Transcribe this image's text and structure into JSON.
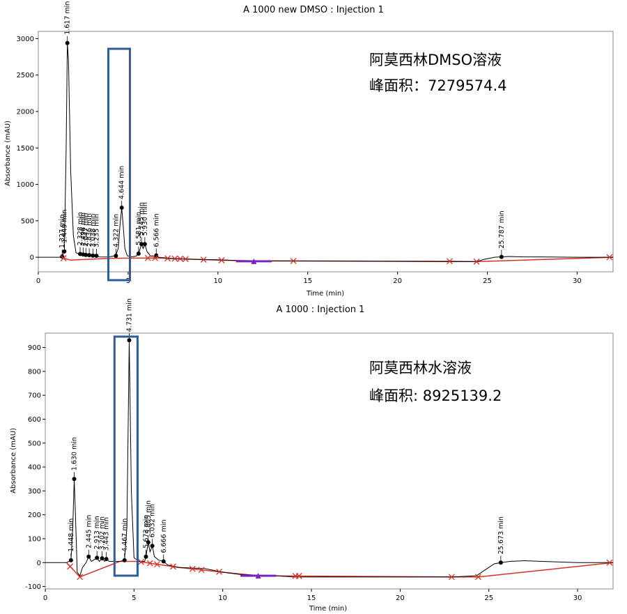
{
  "colors": {
    "trace": "#000000",
    "baseline": "#d93025",
    "marker": "#d93025",
    "purple": "#7a22c8",
    "highlight_box": "#2e5c96",
    "frame": "#888888"
  },
  "chart_data": [
    {
      "type": "line",
      "title": "A 1000 new DMSO : Injection 1",
      "xlabel": "Time (min)",
      "ylabel": "Absorbance (mAU)",
      "xlim": [
        0,
        32
      ],
      "ylim": [
        -200,
        3100
      ],
      "xticks": [
        0,
        5,
        10,
        15,
        20,
        25,
        30
      ],
      "yticks": [
        0,
        500,
        1000,
        1500,
        2000,
        2500,
        3000
      ],
      "annotation": [
        "阿莫西林DMSO溶液",
        "峰面积：7279574.4"
      ],
      "highlight_x_range": [
        3.9,
        5.1
      ],
      "peaks": [
        {
          "time": 1.327,
          "height": 10,
          "label": "1.327 min"
        },
        {
          "time": 1.449,
          "height": 80,
          "label": "1.449 min"
        },
        {
          "time": 1.617,
          "height": 2940,
          "label": "1.617 min"
        },
        {
          "time": 2.328,
          "height": 45,
          "label": "2.328 min"
        },
        {
          "time": 2.496,
          "height": 38,
          "label": "2.496 min"
        },
        {
          "time": 2.647,
          "height": 32,
          "label": "2.647 min"
        },
        {
          "time": 2.836,
          "height": 28,
          "label": "2.836 min"
        },
        {
          "time": 3.038,
          "height": 22,
          "label": "3.038 min"
        },
        {
          "time": 3.235,
          "height": 20,
          "label": "3.235 min"
        },
        {
          "time": 4.322,
          "height": 20,
          "label": "4.322 min"
        },
        {
          "time": 4.644,
          "height": 680,
          "label": "4.644 min"
        },
        {
          "time": 5.581,
          "height": 50,
          "label": "5.581 min"
        },
        {
          "time": 5.745,
          "height": 180,
          "label": "5.745 min"
        },
        {
          "time": 5.93,
          "height": 180,
          "label": "5.930 min"
        },
        {
          "time": 6.566,
          "height": 25,
          "label": "6.566 min"
        },
        {
          "time": 25.787,
          "height": 5,
          "label": "25.787 min"
        }
      ],
      "trace": [
        [
          0,
          0
        ],
        [
          1.2,
          0
        ],
        [
          1.32,
          10
        ],
        [
          1.45,
          80
        ],
        [
          1.55,
          1500
        ],
        [
          1.617,
          2940
        ],
        [
          1.68,
          2700
        ],
        [
          1.8,
          1200
        ],
        [
          1.95,
          300
        ],
        [
          2.1,
          60
        ],
        [
          2.3,
          45
        ],
        [
          2.4,
          25
        ],
        [
          2.5,
          38
        ],
        [
          2.58,
          22
        ],
        [
          2.65,
          32
        ],
        [
          2.74,
          18
        ],
        [
          2.84,
          28
        ],
        [
          2.94,
          15
        ],
        [
          3.04,
          22
        ],
        [
          3.14,
          12
        ],
        [
          3.24,
          20
        ],
        [
          3.4,
          5
        ],
        [
          3.9,
          3
        ],
        [
          4.3,
          20
        ],
        [
          4.45,
          120
        ],
        [
          4.55,
          450
        ],
        [
          4.644,
          680
        ],
        [
          4.72,
          450
        ],
        [
          4.82,
          120
        ],
        [
          4.95,
          20
        ],
        [
          5.2,
          5
        ],
        [
          5.45,
          15
        ],
        [
          5.58,
          50
        ],
        [
          5.66,
          110
        ],
        [
          5.745,
          180
        ],
        [
          5.84,
          120
        ],
        [
          5.93,
          180
        ],
        [
          6.05,
          80
        ],
        [
          6.25,
          15
        ],
        [
          6.45,
          10
        ],
        [
          6.566,
          25
        ],
        [
          6.7,
          0
        ],
        [
          7.5,
          -20
        ],
        [
          9,
          -30
        ],
        [
          10,
          -35
        ],
        [
          11,
          -45
        ],
        [
          13,
          -50
        ],
        [
          14,
          -50
        ],
        [
          18,
          -55
        ],
        [
          22.9,
          -60
        ],
        [
          24.4,
          -60
        ],
        [
          24.8,
          -30
        ],
        [
          25.4,
          0
        ],
        [
          25.787,
          5
        ],
        [
          26.2,
          10
        ],
        [
          27,
          5
        ],
        [
          28,
          5
        ],
        [
          30,
          0
        ],
        [
          32,
          0
        ]
      ],
      "baseline": [
        [
          1.2,
          0
        ],
        [
          1.8,
          -40
        ],
        [
          4.0,
          -15
        ],
        [
          6.5,
          -10
        ],
        [
          10,
          -40
        ],
        [
          12,
          -50
        ],
        [
          22.9,
          -55
        ],
        [
          24.4,
          -60
        ],
        [
          32,
          0
        ]
      ],
      "x_markers": [
        1.4,
        6.1,
        6.5,
        7.2,
        7.6,
        7.9,
        8.2,
        9.2,
        10.2,
        14.2,
        22.9,
        24.4,
        32
      ],
      "purple_segment": [
        11.0,
        13.0,
        -55
      ],
      "purple_marker": [
        12.0,
        -55
      ]
    },
    {
      "type": "line",
      "title": "A 1000 : Injection 1",
      "xlabel": "Time (min)",
      "ylabel": "Absorbance (mAU)",
      "xlim": [
        0,
        32
      ],
      "ylim": [
        -110,
        960
      ],
      "xticks": [
        0,
        5,
        10,
        15,
        20,
        25,
        30
      ],
      "yticks": [
        -100,
        0,
        100,
        200,
        300,
        400,
        500,
        600,
        700,
        800,
        900
      ],
      "annotation": [
        "阿莫西林水溶液",
        "峰面积: 8925139.2"
      ],
      "highlight_x_range": [
        3.9,
        5.2
      ],
      "peaks": [
        {
          "time": 1.448,
          "height": 10,
          "label": "1.448 min"
        },
        {
          "time": 1.63,
          "height": 350,
          "label": "1.630 min"
        },
        {
          "time": 2.445,
          "height": 25,
          "label": "2.445 min"
        },
        {
          "time": 2.913,
          "height": 20,
          "label": "2.913 min"
        },
        {
          "time": 3.202,
          "height": 18,
          "label": "3.202 min"
        },
        {
          "time": 3.443,
          "height": 15,
          "label": "3.443 min"
        },
        {
          "time": 4.467,
          "height": 10,
          "label": "4.467 min"
        },
        {
          "time": 4.731,
          "height": 930,
          "label": "4.731 min"
        },
        {
          "time": 5.673,
          "height": 25,
          "label": "5.673 min"
        },
        {
          "time": 5.805,
          "height": 85,
          "label": "5.805 min"
        },
        {
          "time": 6.032,
          "height": 70,
          "label": "6.032 min"
        },
        {
          "time": 6.666,
          "height": 5,
          "label": "6.666 min"
        },
        {
          "time": 25.673,
          "height": 0,
          "label": "25.673 min"
        }
      ],
      "trace": [
        [
          0,
          0
        ],
        [
          1.2,
          0
        ],
        [
          1.448,
          10
        ],
        [
          1.55,
          150
        ],
        [
          1.63,
          350
        ],
        [
          1.7,
          200
        ],
        [
          1.8,
          -40
        ],
        [
          1.95,
          -55
        ],
        [
          2.1,
          -20
        ],
        [
          2.3,
          0
        ],
        [
          2.445,
          25
        ],
        [
          2.6,
          5
        ],
        [
          2.913,
          20
        ],
        [
          3.05,
          5
        ],
        [
          3.202,
          18
        ],
        [
          3.35,
          5
        ],
        [
          3.443,
          15
        ],
        [
          3.6,
          5
        ],
        [
          4.2,
          5
        ],
        [
          4.467,
          10
        ],
        [
          4.6,
          150
        ],
        [
          4.731,
          930
        ],
        [
          4.85,
          300
        ],
        [
          5.0,
          20
        ],
        [
          5.3,
          5
        ],
        [
          5.6,
          5
        ],
        [
          5.673,
          25
        ],
        [
          5.75,
          60
        ],
        [
          5.805,
          85
        ],
        [
          5.9,
          45
        ],
        [
          6.032,
          70
        ],
        [
          6.15,
          25
        ],
        [
          6.4,
          10
        ],
        [
          6.666,
          5
        ],
        [
          6.9,
          -10
        ],
        [
          7.5,
          -20
        ],
        [
          9,
          -25
        ],
        [
          10,
          -40
        ],
        [
          11,
          -50
        ],
        [
          13,
          -55
        ],
        [
          14,
          -60
        ],
        [
          18,
          -60
        ],
        [
          22.9,
          -60
        ],
        [
          24.3,
          -55
        ],
        [
          24.8,
          -30
        ],
        [
          25.3,
          -5
        ],
        [
          25.673,
          0
        ],
        [
          26.2,
          5
        ],
        [
          27,
          8
        ],
        [
          28,
          5
        ],
        [
          30,
          0
        ],
        [
          32,
          0
        ]
      ],
      "baseline": [
        [
          1.2,
          0
        ],
        [
          1.95,
          -60
        ],
        [
          4.2,
          5
        ],
        [
          5.2,
          5
        ],
        [
          7.5,
          -20
        ],
        [
          10,
          -40
        ],
        [
          12,
          -55
        ],
        [
          22.9,
          -60
        ],
        [
          24.4,
          -60
        ],
        [
          32,
          0
        ]
      ],
      "x_markers": [
        1.4,
        1.95,
        5.4,
        5.9,
        6.3,
        7.2,
        8.3,
        8.8,
        9.8,
        14.1,
        14.3,
        22.9,
        24.4,
        32
      ],
      "purple_segment": [
        11.0,
        13.0,
        -55
      ],
      "purple_marker": [
        12.0,
        -55
      ]
    }
  ]
}
